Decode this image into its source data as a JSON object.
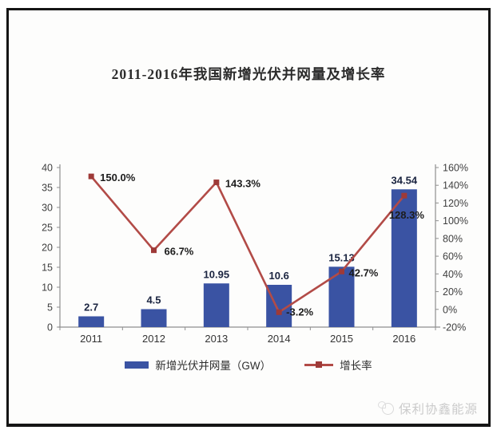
{
  "page": {
    "watermark": "保利协鑫能源"
  },
  "chart_data": {
    "type": "bar",
    "subtype": "bar+line combo",
    "title": "2011-2016年我国新增光伏并网量及增长率",
    "categories": [
      "2011",
      "2012",
      "2013",
      "2014",
      "2015",
      "2016"
    ],
    "series": [
      {
        "name": "新增光伏并网量（GW）",
        "type": "bar",
        "axis": "left",
        "values": [
          2.7,
          4.5,
          10.95,
          10.6,
          15.13,
          34.54
        ],
        "labels": [
          "2.7",
          "4.5",
          "10.95",
          "10.6",
          "15.13",
          "34.54"
        ],
        "color": "#3a53a3"
      },
      {
        "name": "增长率",
        "type": "line",
        "axis": "right",
        "values": [
          150.0,
          66.7,
          143.3,
          -3.2,
          42.7,
          128.3
        ],
        "labels": [
          "150.0%",
          "66.7%",
          "143.3%",
          "-3.2%",
          "42.7%",
          "128.3%"
        ],
        "color": "#b24b47",
        "marker_color": "#9e3a38",
        "label_offsets": [
          [
            11,
            6
          ],
          [
            13,
            6
          ],
          [
            11,
            6
          ],
          [
            9,
            4
          ],
          [
            9,
            6
          ],
          [
            -19,
            29
          ]
        ]
      }
    ],
    "left_axis": {
      "min": 0,
      "max": 40,
      "step": 5,
      "ticks": [
        "0",
        "5",
        "10",
        "15",
        "20",
        "25",
        "30",
        "35",
        "40"
      ]
    },
    "right_axis": {
      "min": -20,
      "max": 160,
      "step": 20,
      "ticks": [
        "-20%",
        "0%",
        "20%",
        "40%",
        "60%",
        "80%",
        "100%",
        "120%",
        "140%",
        "160%"
      ]
    },
    "grid": false,
    "legend_position": "bottom",
    "axis_line_color": "#8f8f8f"
  }
}
